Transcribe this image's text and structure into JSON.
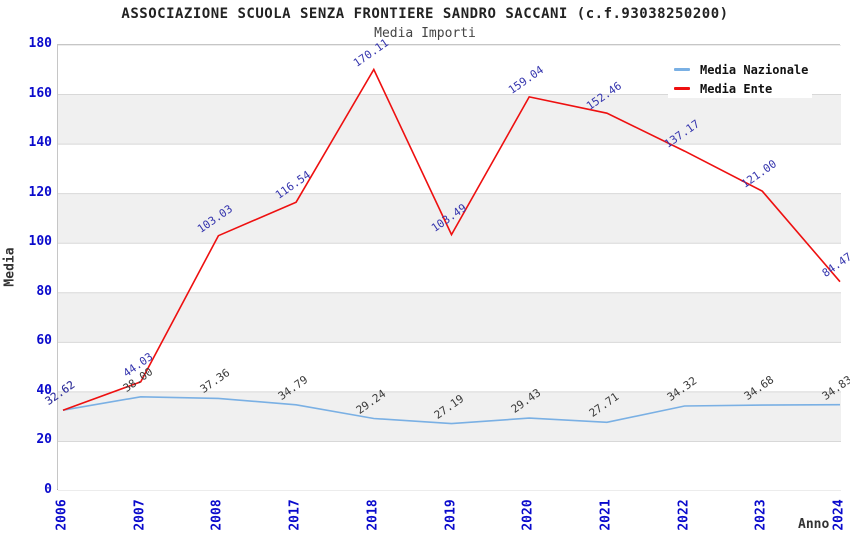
{
  "title": "ASSOCIAZIONE SCUOLA SENZA FRONTIERE SANDRO SACCANI (c.f.93038250200)",
  "subtitle": "Media Importi",
  "legend": {
    "items": [
      {
        "label": "Media Nazionale",
        "color": "#7ab0e4"
      },
      {
        "label": "Media Ente",
        "color": "#ee1010"
      }
    ]
  },
  "axes": {
    "y_label": "Media",
    "x_label": "Anno",
    "y_ticks": [
      0,
      20,
      40,
      60,
      80,
      100,
      120,
      140,
      160,
      180
    ],
    "tick_color": "#0a0acc"
  },
  "chart_data": {
    "type": "line",
    "title": "Media Importi",
    "xlabel": "Anno",
    "ylabel": "Media",
    "ylim": [
      0,
      180
    ],
    "grid": true,
    "legend_position": "top-right",
    "band_colors": [
      "#ffffff",
      "#f0f0f0"
    ],
    "categories": [
      "2006",
      "2007",
      "2008",
      "2017",
      "2018",
      "2019",
      "2020",
      "2021",
      "2022",
      "2023",
      "2024"
    ],
    "series": [
      {
        "name": "Media Nazionale",
        "color": "#7ab0e4",
        "label_color": "#3a3a3a",
        "values": [
          32.62,
          38.0,
          37.36,
          34.79,
          29.24,
          27.19,
          29.43,
          27.71,
          34.32,
          34.68,
          34.83
        ]
      },
      {
        "name": "Media Ente",
        "color": "#ee1010",
        "label_color": "#3434ad",
        "values": [
          32.62,
          44.03,
          103.03,
          116.54,
          170.11,
          103.49,
          159.04,
          152.46,
          137.17,
          121.0,
          84.47
        ]
      }
    ]
  }
}
